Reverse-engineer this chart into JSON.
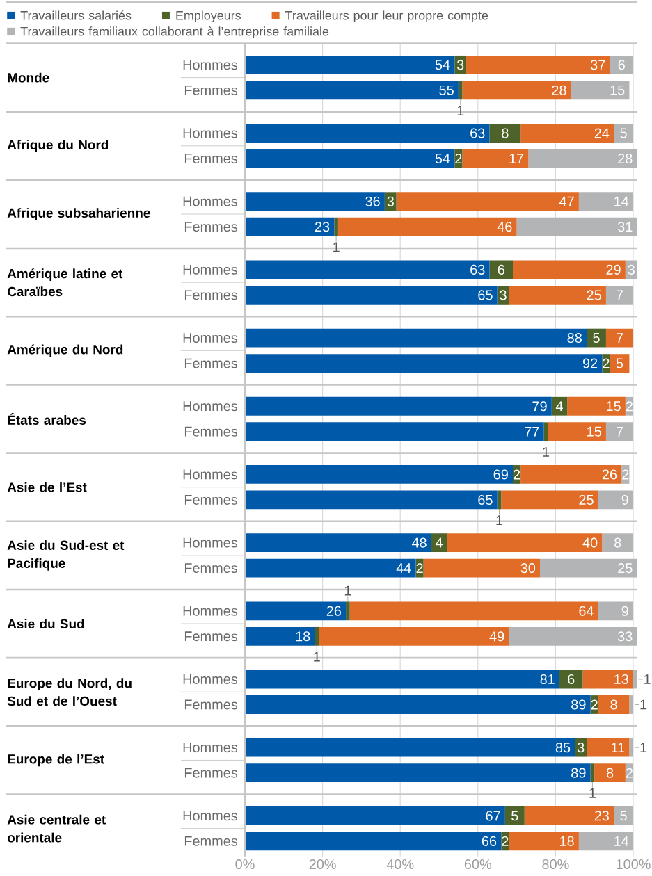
{
  "chart_data": {
    "type": "bar",
    "orientation": "horizontal",
    "stacked": true,
    "categories": [
      "Hommes",
      "Femmes",
      "Hommes",
      "Femmes",
      "Hommes",
      "Femmes",
      "Hommes",
      "Femmes",
      "Hommes",
      "Femmes",
      "Hommes",
      "Femmes",
      "Hommes",
      "Femmes",
      "Hommes",
      "Femmes",
      "Hommes",
      "Femmes",
      "Hommes",
      "Femmes",
      "Hommes",
      "Femmes",
      "Hommes",
      "Femmes"
    ],
    "annotations": [
      "Monde",
      "Afrique du Nord",
      "Afrique subsaharienne",
      "Amérique latine et Caraïbes",
      "Amérique du Nord",
      "États arabes",
      "Asie de l’Est",
      "Asie du Sud-est et Pacifique",
      "Asie du Sud",
      "Europe du Nord, du Sud et de l’Ouest",
      "Europe de l’Est",
      "Asie centrale et orientale"
    ],
    "series": [
      {
        "name": "Travailleurs salariés",
        "color": "#005aa9",
        "values": [
          54,
          55,
          63,
          54,
          36,
          23,
          63,
          65,
          88,
          92,
          79,
          77,
          69,
          65,
          48,
          44,
          26,
          18,
          81,
          89,
          85,
          89,
          67,
          66
        ]
      },
      {
        "name": "Employeurs",
        "color": "#4e6329",
        "values": [
          3,
          1,
          8,
          2,
          3,
          1,
          6,
          3,
          5,
          2,
          4,
          1,
          2,
          1,
          4,
          2,
          1,
          1,
          6,
          2,
          3,
          1,
          5,
          2
        ]
      },
      {
        "name": "Travailleurs pour leur propre compte",
        "color": "#e06c27",
        "values": [
          37,
          28,
          24,
          17,
          47,
          46,
          29,
          25,
          7,
          5,
          15,
          15,
          26,
          25,
          40,
          30,
          64,
          49,
          13,
          8,
          11,
          8,
          23,
          18
        ]
      },
      {
        "name": "Travailleurs familiaux collaborant à l’entreprise familiale",
        "color": "#b2b4b6",
        "values": [
          6,
          15,
          5,
          28,
          14,
          31,
          3,
          7,
          null,
          null,
          2,
          7,
          2,
          9,
          8,
          25,
          9,
          33,
          1,
          1,
          1,
          2,
          5,
          14
        ]
      }
    ],
    "data_labels": true,
    "xlim": [
      0,
      101
    ],
    "xticks": [
      {
        "value": 0,
        "label": "0%"
      },
      {
        "value": 20,
        "label": "20%"
      },
      {
        "value": 40,
        "label": "40%"
      },
      {
        "value": 60,
        "label": "60%"
      },
      {
        "value": 80,
        "label": "80%"
      },
      {
        "value": 100,
        "label": "100%"
      }
    ],
    "grid": "x",
    "legend": "top"
  }
}
